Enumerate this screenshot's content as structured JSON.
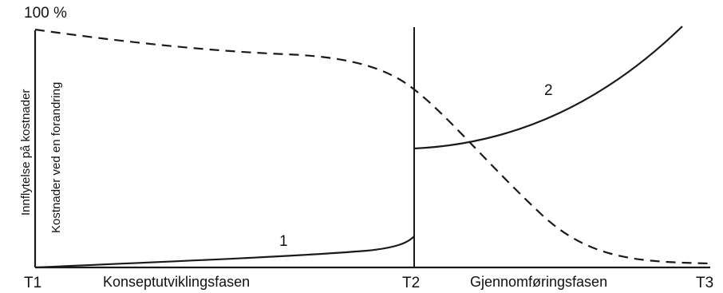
{
  "diagram": {
    "y_max_label": "100 %",
    "y_label_outer": "Innflytelse på kostnader",
    "y_label_inner": "Kostnader ved en forandring",
    "time_labels": [
      "T1",
      "T2",
      "T3"
    ],
    "phases": [
      "Konseptutviklingsfasen",
      "Gjennomføringsfasen"
    ],
    "curve_labels": [
      "1",
      "2"
    ]
  }
}
